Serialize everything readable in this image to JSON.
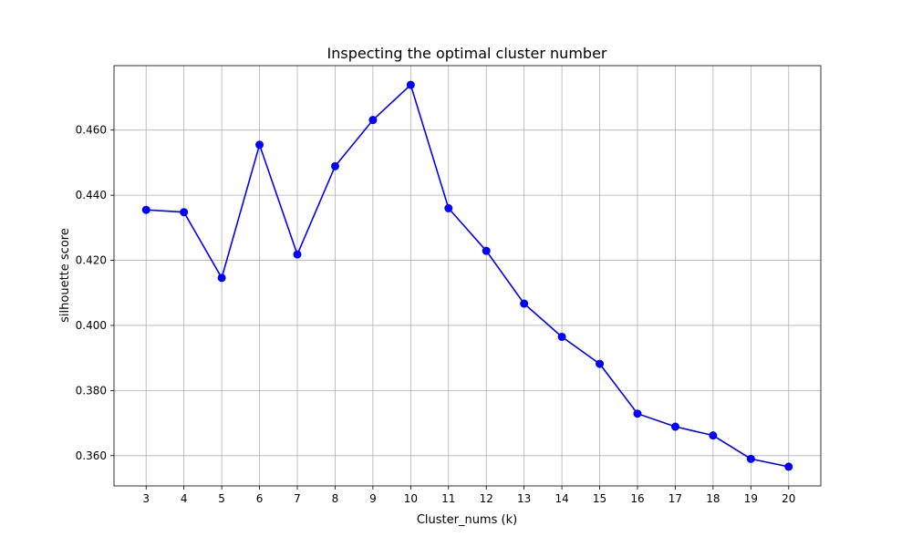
{
  "chart_data": {
    "type": "line",
    "title": "Inspecting the optimal cluster number",
    "xlabel": "Cluster_nums (k)",
    "ylabel": "silhouette score",
    "x": [
      3,
      4,
      5,
      6,
      7,
      8,
      9,
      10,
      11,
      12,
      13,
      14,
      15,
      16,
      17,
      18,
      19,
      20
    ],
    "series": [
      {
        "values": [
          0.4355,
          0.4348,
          0.4146,
          0.4555,
          0.4218,
          0.4489,
          0.4631,
          0.4739,
          0.436,
          0.4229,
          0.4067,
          0.3965,
          0.3882,
          0.3729,
          0.3689,
          0.3662,
          0.359,
          0.3566
        ],
        "color": "#0000ff",
        "marker": "circle"
      }
    ],
    "xticks": [
      3,
      4,
      5,
      6,
      7,
      8,
      9,
      10,
      11,
      12,
      13,
      14,
      15,
      16,
      17,
      18,
      19,
      20
    ],
    "yticks": [
      0.36,
      0.38,
      0.4,
      0.42,
      0.44,
      0.46
    ],
    "ytick_labels": [
      "0.360",
      "0.380",
      "0.400",
      "0.420",
      "0.440",
      "0.460"
    ],
    "xlim": [
      2.15,
      20.85
    ],
    "ylim": [
      0.3507,
      0.4798
    ],
    "grid": true
  }
}
